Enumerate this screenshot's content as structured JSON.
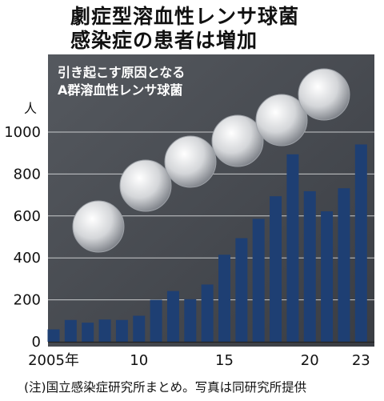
{
  "header": {
    "line1": "劇症型溶血性レンサ球菌",
    "line2": "感染症の患者は増加"
  },
  "photo_caption": {
    "line1": "引き起こす原因となる",
    "line2": "A群溶血性レンサ球菌"
  },
  "note": "(注)国立感染症研究所まとめ。写真は同研究所提供",
  "colors": {
    "bar": "#1e3f73",
    "panel": "#474b52"
  },
  "chart_data": {
    "type": "bar",
    "unit": "人",
    "years": [
      2005,
      2006,
      2007,
      2008,
      2009,
      2010,
      2011,
      2012,
      2013,
      2014,
      2015,
      2016,
      2017,
      2018,
      2019,
      2020,
      2021,
      2022,
      2023
    ],
    "values": [
      59,
      104,
      91,
      106,
      104,
      124,
      200,
      242,
      203,
      273,
      415,
      494,
      586,
      694,
      894,
      718,
      622,
      732,
      941
    ],
    "x_tick_labels": [
      {
        "year": 2005,
        "label": "2005年"
      },
      {
        "year": 2010,
        "label": "10"
      },
      {
        "year": 2015,
        "label": "15"
      },
      {
        "year": 2020,
        "label": "20"
      },
      {
        "year": 2023,
        "label": "23"
      }
    ],
    "y_ticks": [
      0,
      200,
      400,
      600,
      800,
      1000
    ],
    "ylim": [
      0,
      1000
    ],
    "grid": true
  }
}
